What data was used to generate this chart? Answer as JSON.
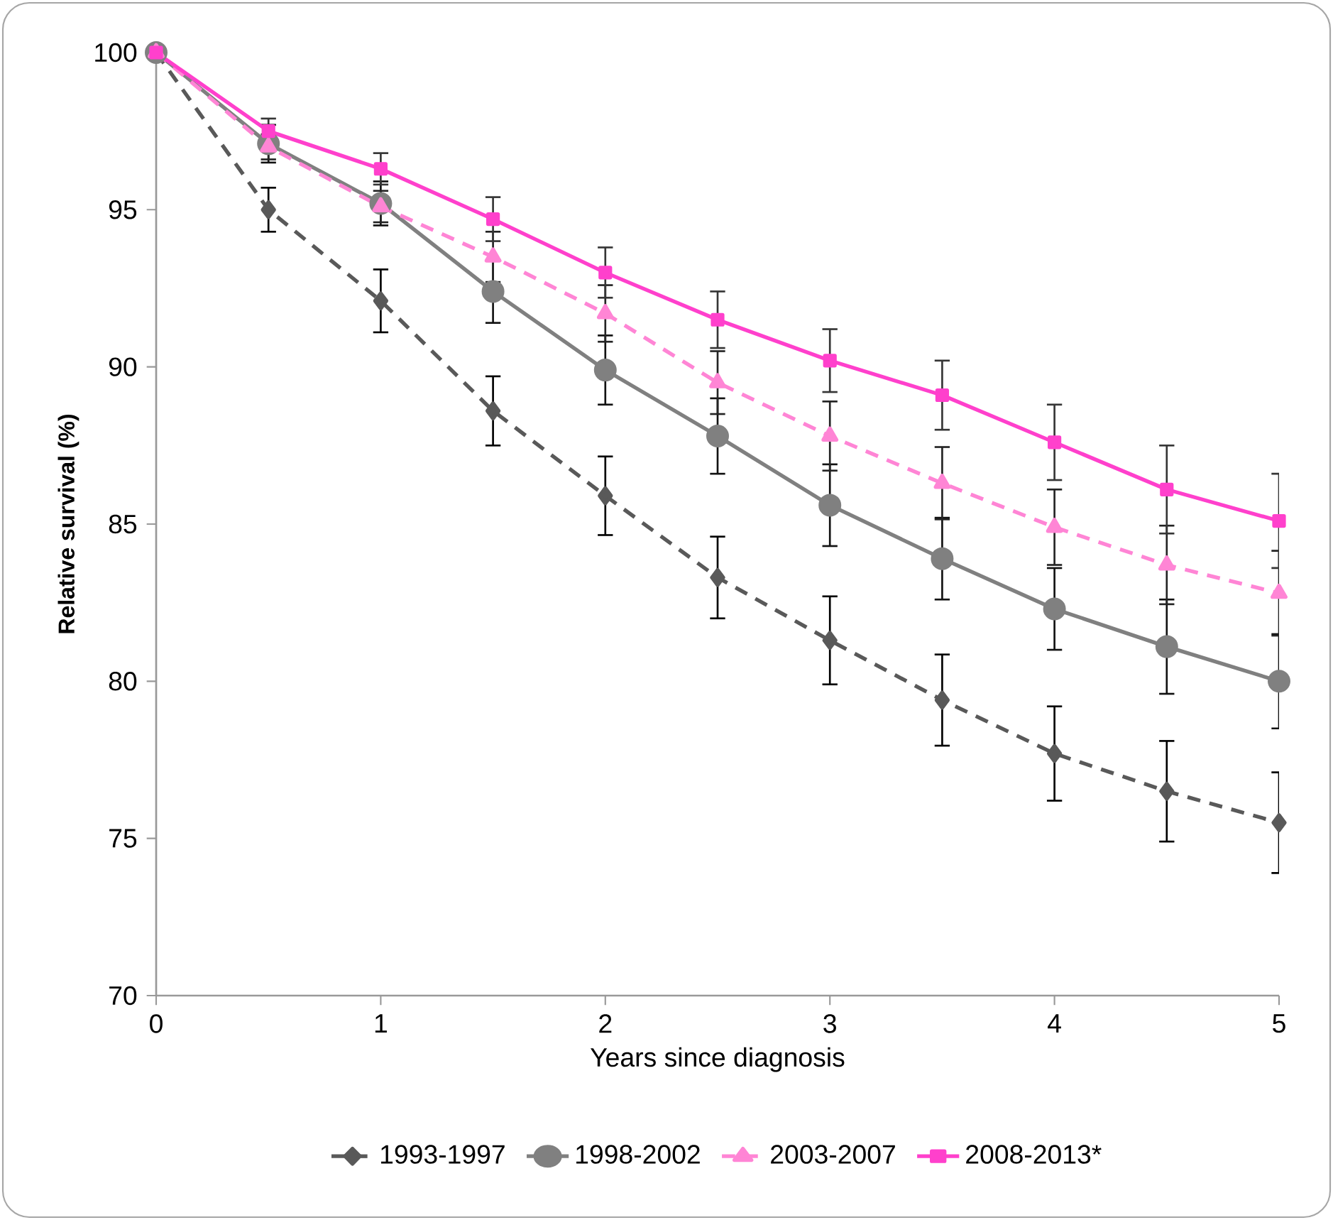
{
  "chart_data": {
    "type": "line",
    "xlabel": "Years since diagnosis",
    "ylabel": "Relative survival (%)",
    "x": [
      0,
      0.5,
      1,
      1.5,
      2,
      2.5,
      3,
      3.5,
      4,
      4.5,
      5
    ],
    "xlim": [
      0,
      5
    ],
    "ylim": [
      70,
      100
    ],
    "xticks": [
      0,
      1,
      2,
      3,
      4,
      5
    ],
    "yticks": [
      70,
      75,
      80,
      85,
      90,
      95,
      100
    ],
    "grid": false,
    "legend": "bottom",
    "series": [
      {
        "name": "1993-1997",
        "color": "#595959",
        "marker": "diamond",
        "line_style": "dashed",
        "values": [
          100,
          95.0,
          92.1,
          88.6,
          85.9,
          83.3,
          81.3,
          79.4,
          77.7,
          76.5,
          75.5
        ],
        "errors": [
          null,
          0.7,
          1.0,
          1.1,
          1.25,
          1.3,
          1.4,
          1.45,
          1.5,
          1.6,
          1.6
        ]
      },
      {
        "name": "1998-2002",
        "color": "#808080",
        "marker": "circle",
        "line_style": "solid",
        "values": [
          100,
          97.1,
          95.2,
          92.4,
          89.9,
          87.8,
          85.6,
          83.9,
          82.3,
          81.1,
          80.0
        ],
        "errors": [
          null,
          0.6,
          0.7,
          1.0,
          1.1,
          1.2,
          1.3,
          1.3,
          1.3,
          1.5,
          1.5
        ]
      },
      {
        "name": "2003-2007",
        "color": "#ff85d5",
        "marker": "triangle",
        "line_style": "dashed",
        "values": [
          100,
          97.0,
          95.1,
          93.5,
          91.7,
          89.5,
          87.8,
          86.3,
          84.9,
          83.7,
          82.8
        ],
        "errors": [
          null,
          0.4,
          0.5,
          0.8,
          0.9,
          1.0,
          1.1,
          1.15,
          1.2,
          1.25,
          1.35
        ]
      },
      {
        "name": "2008-2013*",
        "color": "#ff40cc",
        "marker": "square",
        "line_style": "solid",
        "values": [
          100,
          97.5,
          96.3,
          94.7,
          93.0,
          91.5,
          90.2,
          89.1,
          87.6,
          86.1,
          85.1
        ],
        "errors": [
          null,
          0.4,
          0.5,
          0.7,
          0.8,
          0.9,
          1.0,
          1.1,
          1.2,
          1.4,
          1.5
        ]
      }
    ]
  }
}
